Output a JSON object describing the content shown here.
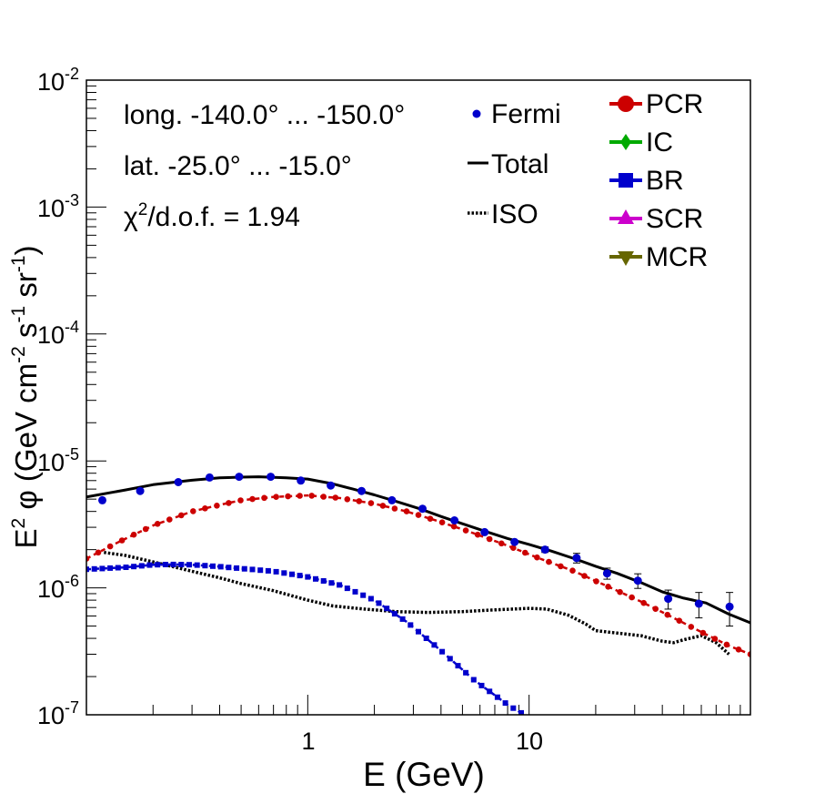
{
  "chart_data": {
    "type": "scatter",
    "xscale": "log",
    "yscale": "log",
    "xlim": [
      0.1,
      100
    ],
    "ylim": [
      1e-07,
      0.01
    ],
    "xlabel": "E (GeV)",
    "ylabel": "E² φ (GeV cm⁻² s⁻¹ sr⁻¹)",
    "ylabel_parts": {
      "e": "E",
      "e_sup": "2",
      "phi": " φ (GeV cm",
      "cm_sup": "-2",
      "s": " s",
      "s_sup": "-1",
      "sr": " sr",
      "sr_sup": "-1",
      "close": ")"
    },
    "x_ticks": [
      {
        "value": 1,
        "label": "1"
      },
      {
        "value": 10,
        "label": "10"
      }
    ],
    "y_ticks": [
      {
        "value": 1e-07,
        "base": "10",
        "exp": "-7"
      },
      {
        "value": 1e-06,
        "base": "10",
        "exp": "-6"
      },
      {
        "value": 1e-05,
        "base": "10",
        "exp": "-5"
      },
      {
        "value": 0.0001,
        "base": "10",
        "exp": "-4"
      },
      {
        "value": 0.001,
        "base": "10",
        "exp": "-3"
      },
      {
        "value": 0.01,
        "base": "10",
        "exp": "-2"
      }
    ],
    "annotations": {
      "longitude": "long. -140.0° ... -150.0°",
      "latitude": "lat. -25.0° ... -15.0°",
      "chi_symbol": "χ",
      "chi_exp": "2",
      "chi_rest": "/d.o.f. = 1.94"
    },
    "legend": {
      "placement": "top-right",
      "entries": [
        {
          "label": "Fermi",
          "style": "points",
          "color": "#0000cc"
        },
        {
          "label": "Total",
          "style": "solid",
          "color": "#000000"
        },
        {
          "label": "ISO",
          "style": "dotted",
          "color": "#000000"
        },
        {
          "label": "PCR",
          "style": "circle-line",
          "color": "#cc0000"
        },
        {
          "label": "IC",
          "style": "diamond-line",
          "color": "#00aa00"
        },
        {
          "label": "BR",
          "style": "square-line",
          "color": "#0000cc"
        },
        {
          "label": "SCR",
          "style": "triangle-line",
          "color": "#cc00cc"
        },
        {
          "label": "MCR",
          "style": "triangle-down-line",
          "color": "#666600"
        }
      ]
    },
    "fermi": {
      "color": "#0000cc",
      "points": [
        {
          "x": 0.118,
          "y": 4.9e-06,
          "err": 0
        },
        {
          "x": 0.175,
          "y": 5.8e-06,
          "err": 0
        },
        {
          "x": 0.26,
          "y": 6.8e-06,
          "err": 0
        },
        {
          "x": 0.36,
          "y": 7.4e-06,
          "err": 0
        },
        {
          "x": 0.49,
          "y": 7.5e-06,
          "err": 0
        },
        {
          "x": 0.68,
          "y": 7.5e-06,
          "err": 0
        },
        {
          "x": 0.93,
          "y": 7e-06,
          "err": 0
        },
        {
          "x": 1.27,
          "y": 6.4e-06,
          "err": 0
        },
        {
          "x": 1.75,
          "y": 5.8e-06,
          "err": 0
        },
        {
          "x": 2.4,
          "y": 4.9e-06,
          "err": 0
        },
        {
          "x": 3.3,
          "y": 4.2e-06,
          "err": 0
        },
        {
          "x": 4.6,
          "y": 3.4e-06,
          "err": 0
        },
        {
          "x": 6.3,
          "y": 2.75e-06,
          "err": 0
        },
        {
          "x": 8.6,
          "y": 2.3e-06,
          "err": 0
        },
        {
          "x": 11.8,
          "y": 2e-06,
          "err": 1e-07
        },
        {
          "x": 16.4,
          "y": 1.72e-06,
          "err": 1.5e-07
        },
        {
          "x": 22.5,
          "y": 1.3e-06,
          "err": 1.3e-07
        },
        {
          "x": 31,
          "y": 1.14e-06,
          "err": 1.5e-07
        },
        {
          "x": 42.5,
          "y": 8.2e-07,
          "err": 1.4e-07
        },
        {
          "x": 58.5,
          "y": 7.5e-07,
          "err": 1.7e-07
        },
        {
          "x": 80.5,
          "y": 7.1e-07,
          "err": 2.1e-07
        }
      ]
    },
    "series": [
      {
        "name": "Total",
        "color": "#000000",
        "style": "solid",
        "x": [
          0.1,
          0.15,
          0.2,
          0.3,
          0.4,
          0.5,
          0.6,
          0.8,
          1.0,
          1.3,
          1.6,
          2.0,
          2.5,
          3.2,
          4.0,
          5.0,
          6.3,
          8.0,
          10,
          12.6,
          16,
          20,
          25,
          32,
          40,
          50,
          63,
          80,
          100
        ],
        "y": [
          5.2e-06,
          5.9e-06,
          6.5e-06,
          7.05e-06,
          7.35e-06,
          7.45e-06,
          7.5e-06,
          7.35e-06,
          7.2e-06,
          6.6e-06,
          6e-06,
          5.4e-06,
          4.8e-06,
          4.2e-06,
          3.65e-06,
          3.2e-06,
          2.8e-06,
          2.45e-06,
          2.2e-06,
          1.95e-06,
          1.7e-06,
          1.48e-06,
          1.3e-06,
          1.1e-06,
          9.3e-07,
          8.3e-07,
          7.6e-07,
          6.2e-07,
          5.3e-07
        ]
      },
      {
        "name": "ISO",
        "color": "#000000",
        "style": "dotted",
        "x": [
          0.12,
          0.15,
          0.2,
          0.3,
          0.4,
          0.5,
          0.7,
          1.0,
          1.3,
          1.8,
          2.5,
          3.5,
          5.0,
          7.0,
          10,
          12,
          15,
          18,
          20,
          25,
          32,
          40,
          45,
          50,
          60,
          70,
          80
        ],
        "y": [
          1.9e-06,
          1.8e-06,
          1.6e-06,
          1.35e-06,
          1.2e-06,
          1.08e-06,
          9.5e-07,
          8e-07,
          7.2e-07,
          6.8e-07,
          6.5e-07,
          6.4e-07,
          6.5e-07,
          6.7e-07,
          6.9e-07,
          6.8e-07,
          6.1e-07,
          5.2e-07,
          4.6e-07,
          4.4e-07,
          4.2e-07,
          3.8e-07,
          3.7e-07,
          3.9e-07,
          4.2e-07,
          3.7e-07,
          3e-07
        ]
      },
      {
        "name": "PCR",
        "color": "#cc0000",
        "style": "circle-line",
        "x": [
          0.1,
          0.14,
          0.2,
          0.3,
          0.4,
          0.5,
          0.7,
          1.0,
          1.4,
          2.0,
          2.8,
          4.0,
          5.6,
          8.0,
          11,
          16,
          22,
          32,
          45,
          63,
          80,
          100
        ],
        "y": [
          1.7e-06,
          2.3e-06,
          3.1e-06,
          4e-06,
          4.5e-06,
          4.9e-06,
          5.2e-06,
          5.35e-06,
          5.1e-06,
          4.6e-06,
          4e-06,
          3.3e-06,
          2.7e-06,
          2.15e-06,
          1.72e-06,
          1.35e-06,
          1.05e-06,
          7.8e-07,
          5.8e-07,
          4.3e-07,
          3.5e-07,
          3e-07
        ]
      },
      {
        "name": "BR",
        "color": "#0000cc",
        "style": "square-line",
        "x": [
          0.1,
          0.15,
          0.2,
          0.25,
          0.3,
          0.4,
          0.5,
          0.7,
          1.0,
          1.4,
          2.0,
          2.8,
          4.0,
          5.6,
          8.0,
          10
        ],
        "y": [
          1.4e-06,
          1.45e-06,
          1.52e-06,
          1.53e-06,
          1.52e-06,
          1.47e-06,
          1.42e-06,
          1.35e-06,
          1.22e-06,
          1.05e-06,
          8e-07,
          5.4e-07,
          3.2e-07,
          1.9e-07,
          1.2e-07,
          9.5e-08
        ]
      }
    ]
  }
}
